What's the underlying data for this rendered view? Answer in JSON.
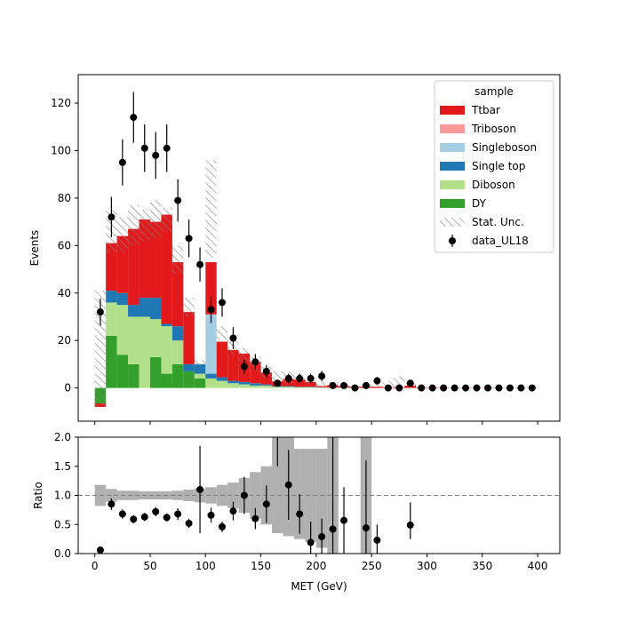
{
  "chart_data": {
    "type": "bar",
    "stacked": true,
    "xlabel": "MET (GeV)",
    "top_ylabel": "Events",
    "bottom_ylabel": "Ratio",
    "xlim": [
      -15,
      420
    ],
    "top_ylim": [
      -14,
      132
    ],
    "bottom_ylim": [
      0,
      2
    ],
    "x_ticks": [
      0,
      50,
      100,
      150,
      200,
      250,
      300,
      350,
      400
    ],
    "top_y_ticks": [
      0,
      20,
      40,
      60,
      80,
      100,
      120
    ],
    "bottom_y_ticks": [
      0.0,
      0.5,
      1.0,
      1.5,
      2.0
    ],
    "bin_edges": [
      0,
      10,
      20,
      30,
      40,
      50,
      60,
      70,
      80,
      90,
      100,
      110,
      120,
      130,
      140,
      150,
      160,
      170,
      180,
      190,
      200,
      210,
      220,
      230,
      240,
      250,
      260,
      270,
      280,
      290,
      300,
      310,
      320,
      330,
      340,
      350,
      360,
      370,
      380,
      390,
      400
    ],
    "legend": {
      "title": "sample",
      "placement": "upper-right",
      "entries": [
        {
          "label": "Ttbar",
          "color": "#e31a1c",
          "kind": "patch"
        },
        {
          "label": "Triboson",
          "color": "#fb9a99",
          "kind": "patch"
        },
        {
          "label": "Singleboson",
          "color": "#a6cee3",
          "kind": "patch"
        },
        {
          "label": "Single top",
          "color": "#1f78b4",
          "kind": "patch"
        },
        {
          "label": "Diboson",
          "color": "#b2df8a",
          "kind": "patch"
        },
        {
          "label": "DY",
          "color": "#33a02c",
          "kind": "patch"
        },
        {
          "label": "Stat. Unc.",
          "color": "#808080",
          "kind": "hatch"
        },
        {
          "label": "data_UL18",
          "color": "#000000",
          "kind": "errorbar"
        }
      ]
    },
    "series": [
      {
        "name": "DY",
        "color": "#33a02c",
        "values": [
          -8,
          22,
          14,
          10,
          0,
          13,
          6,
          10,
          7,
          4,
          0,
          0,
          0,
          0,
          0,
          0,
          0,
          0,
          0,
          0,
          0,
          0,
          0,
          0,
          0,
          0,
          0,
          0,
          0,
          0,
          0,
          0,
          0,
          0,
          0,
          0,
          0,
          0,
          0,
          0
        ]
      },
      {
        "name": "Diboson",
        "color": "#b2df8a",
        "values": [
          0,
          14,
          21,
          20,
          30,
          16,
          20,
          10,
          0,
          2,
          4,
          3,
          2,
          1.5,
          1,
          1,
          0.5,
          0.5,
          0.3,
          0.3,
          0.2,
          0.1,
          0.1,
          0.1,
          0,
          0,
          0,
          0,
          0,
          0,
          0,
          0,
          0,
          0,
          0,
          0,
          0,
          0,
          0,
          0
        ]
      },
      {
        "name": "Single top",
        "color": "#1f78b4",
        "values": [
          0,
          5,
          5,
          5,
          8,
          9,
          1,
          6,
          3,
          4,
          2,
          1.5,
          1,
          1,
          1,
          0.5,
          0.3,
          0.3,
          0.2,
          0.2,
          0.1,
          0.1,
          0.1,
          0,
          0,
          0,
          0,
          0,
          0,
          0,
          0,
          0,
          0,
          0,
          0,
          0,
          0,
          0,
          0,
          0
        ]
      },
      {
        "name": "Singleboson",
        "color": "#a6cee3",
        "values": [
          0,
          0,
          0,
          0,
          0,
          0,
          0,
          0,
          0,
          0,
          25,
          0,
          0,
          0,
          0,
          0,
          0,
          0,
          0,
          0,
          0,
          0,
          0,
          0,
          0,
          0,
          0,
          0,
          0,
          0,
          0,
          0,
          0,
          0,
          0,
          0,
          0,
          0,
          0,
          0
        ]
      },
      {
        "name": "Triboson",
        "color": "#fb9a99",
        "values": [
          0,
          0,
          0,
          0,
          0,
          0,
          0,
          0,
          0,
          0,
          0,
          0,
          0,
          0,
          0,
          0,
          0,
          0,
          0,
          0,
          0,
          0,
          0,
          0,
          0,
          0,
          0,
          0,
          0,
          0,
          0,
          0,
          0,
          0,
          0,
          0,
          0,
          0,
          0,
          0
        ]
      },
      {
        "name": "Ttbar",
        "color": "#e31a1c",
        "values": [
          1.5,
          20,
          24,
          32,
          33,
          32,
          46,
          27,
          22,
          0,
          22,
          15,
          13,
          12,
          9,
          5,
          2,
          3,
          3,
          2,
          0.5,
          1,
          0.5,
          0.5,
          0.5,
          0.5,
          0.3,
          0.3,
          1,
          0.2,
          0.2,
          0.1,
          0.1,
          0.1,
          0.1,
          0.1,
          0.1,
          0.1,
          0.1,
          0.1
        ]
      }
    ],
    "stat_unc_band": {
      "low": [
        -8,
        57,
        57,
        60,
        62,
        63,
        66,
        48,
        30,
        9,
        55,
        20,
        14,
        11,
        7,
        4,
        2,
        2,
        2,
        1.5,
        0.5,
        0.5,
        0.3,
        0.3,
        0.2,
        0.2,
        0.1,
        0.1,
        0.3,
        0,
        0,
        0,
        0,
        0,
        0,
        0,
        0,
        0,
        0,
        0
      ],
      "high": [
        41,
        75,
        72,
        77,
        75,
        79,
        76,
        60,
        38,
        12,
        96,
        26,
        20,
        17,
        13,
        9,
        7,
        7,
        6,
        4.5,
        2.5,
        2.5,
        1.5,
        1.5,
        1.5,
        1.5,
        3,
        5,
        2,
        0.5,
        0.5,
        0.3,
        0.3,
        0.3,
        0.3,
        0.3,
        0.3,
        0.3,
        0.3,
        0.3
      ]
    },
    "data_points": {
      "name": "data_UL18",
      "x": [
        5,
        15,
        25,
        35,
        45,
        55,
        65,
        75,
        85,
        95,
        105,
        115,
        125,
        135,
        145,
        155,
        165,
        175,
        185,
        195,
        205,
        215,
        225,
        235,
        245,
        255,
        265,
        275,
        285,
        295,
        305,
        315,
        325,
        335,
        345,
        355,
        365,
        375,
        385,
        395
      ],
      "y": [
        32,
        72,
        95,
        114,
        101,
        98,
        101,
        79,
        63,
        52,
        33,
        36,
        21,
        9,
        11,
        7,
        2,
        4,
        4,
        4,
        5,
        1,
        1,
        0,
        1,
        3,
        0,
        0,
        2,
        0,
        0,
        0,
        0,
        0,
        0,
        0,
        0,
        0,
        0,
        0
      ],
      "err": [
        5.7,
        8.5,
        9.7,
        10.7,
        10,
        9.9,
        10,
        8.9,
        7.9,
        7.2,
        5.7,
        6,
        4.6,
        3,
        3.3,
        2.6,
        1.4,
        2,
        2,
        2,
        2.2,
        1,
        1,
        0,
        1,
        1.7,
        0,
        0,
        1.4,
        0,
        0,
        0,
        0,
        0,
        0,
        0,
        0,
        0,
        0,
        0
      ]
    },
    "ratio_band": {
      "low": [
        0.82,
        0.89,
        0.92,
        0.92,
        0.93,
        0.93,
        0.93,
        0.92,
        0.9,
        0.88,
        0.86,
        0.82,
        0.78,
        0.7,
        0.6,
        0.5,
        0.35,
        0.3,
        0.25,
        0.2,
        0.1,
        0,
        0,
        0,
        0,
        0,
        0,
        0,
        0,
        0,
        0,
        0,
        0,
        0,
        0,
        0,
        0,
        0,
        0,
        0
      ],
      "high": [
        1.18,
        1.11,
        1.08,
        1.08,
        1.07,
        1.07,
        1.07,
        1.08,
        1.1,
        1.12,
        1.14,
        1.18,
        1.22,
        1.3,
        1.4,
        1.5,
        2,
        2,
        1.8,
        1.8,
        1.8,
        2,
        0,
        0,
        2,
        0,
        0,
        0,
        0,
        0,
        0,
        0,
        0,
        0,
        0,
        0,
        0,
        0,
        0,
        0
      ]
    },
    "ratio_points": [
      {
        "x": 5,
        "y": 0.06,
        "lo": 0.0,
        "hi": 0.12
      },
      {
        "x": 15,
        "y": 0.85,
        "lo": 0.75,
        "hi": 0.95
      },
      {
        "x": 25,
        "y": 0.68,
        "lo": 0.6,
        "hi": 0.76
      },
      {
        "x": 35,
        "y": 0.59,
        "lo": 0.52,
        "hi": 0.66
      },
      {
        "x": 45,
        "y": 0.63,
        "lo": 0.56,
        "hi": 0.7
      },
      {
        "x": 55,
        "y": 0.72,
        "lo": 0.64,
        "hi": 0.8
      },
      {
        "x": 65,
        "y": 0.62,
        "lo": 0.55,
        "hi": 0.69
      },
      {
        "x": 75,
        "y": 0.68,
        "lo": 0.58,
        "hi": 0.78
      },
      {
        "x": 85,
        "y": 0.52,
        "lo": 0.44,
        "hi": 0.6
      },
      {
        "x": 95,
        "y": 1.1,
        "lo": 0.35,
        "hi": 1.85
      },
      {
        "x": 105,
        "y": 0.66,
        "lo": 0.53,
        "hi": 0.79
      },
      {
        "x": 115,
        "y": 0.46,
        "lo": 0.37,
        "hi": 0.55
      },
      {
        "x": 125,
        "y": 0.73,
        "lo": 0.57,
        "hi": 0.89
      },
      {
        "x": 135,
        "y": 1.0,
        "lo": 0.68,
        "hi": 1.32
      },
      {
        "x": 145,
        "y": 0.6,
        "lo": 0.42,
        "hi": 0.78
      },
      {
        "x": 155,
        "y": 0.85,
        "lo": 0.53,
        "hi": 1.17
      },
      {
        "x": 165,
        "y": 2.0,
        "lo": 1.5,
        "hi": 2.0,
        "offscale": true
      },
      {
        "x": 175,
        "y": 1.18,
        "lo": 0.58,
        "hi": 1.78
      },
      {
        "x": 185,
        "y": 0.68,
        "lo": 0.34,
        "hi": 1.02
      },
      {
        "x": 195,
        "y": 0.19,
        "lo": 0.0,
        "hi": 0.55
      },
      {
        "x": 205,
        "y": 0.29,
        "lo": 0.0,
        "hi": 0.6
      },
      {
        "x": 215,
        "y": 0.42,
        "lo": 0.0,
        "hi": 2.0
      },
      {
        "x": 225,
        "y": 0.57,
        "lo": 0.0,
        "hi": 1.14
      },
      {
        "x": 245,
        "y": 0.44,
        "lo": 0.0,
        "hi": 1.6
      },
      {
        "x": 255,
        "y": 0.23,
        "lo": 0.0,
        "hi": 0.5
      },
      {
        "x": 285,
        "y": 0.49,
        "lo": 0.25,
        "hi": 0.88
      }
    ],
    "reference_line": 1.0
  }
}
